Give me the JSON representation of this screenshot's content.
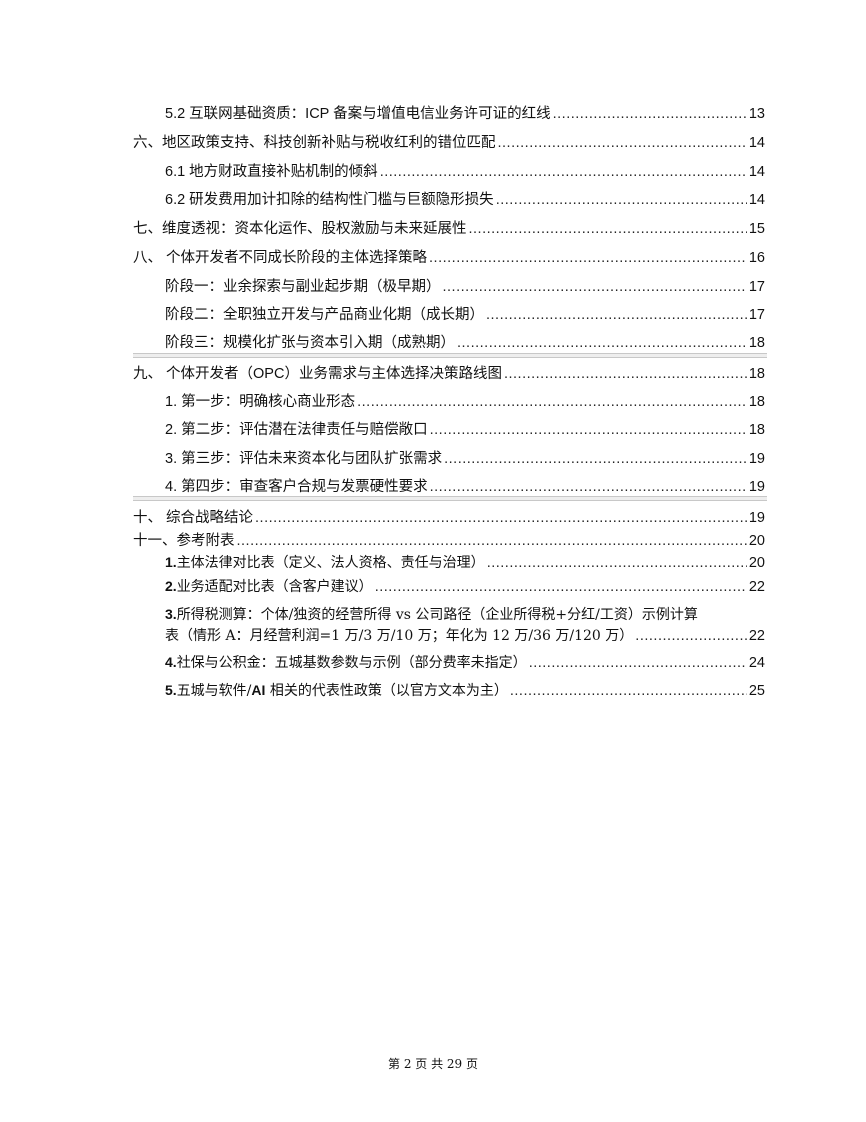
{
  "toc": [
    {
      "text": "5.2 互联网基础资质：ICP 备案与增值电信业务许可证的红线",
      "page": "13",
      "level": 2
    },
    {
      "text": "六、地区政策支持、科技创新补贴与税收红利的错位匹配",
      "page": "14",
      "level": 1
    },
    {
      "text": "6.1 地方财政直接补贴机制的倾斜",
      "page": "14",
      "level": 2
    },
    {
      "text": "6.2 研发费用加计扣除的结构性门槛与巨额隐形损失",
      "page": "14",
      "level": 2
    },
    {
      "text": "七、维度透视：资本化运作、股权激励与未来延展性",
      "page": "15",
      "level": 1
    },
    {
      "text": "八、 个体开发者不同成长阶段的主体选择策略",
      "page": "16",
      "level": 1
    },
    {
      "text": "阶段一：业余探索与副业起步期（极早期）",
      "page": "17",
      "level": 2
    },
    {
      "text": "阶段二：全职独立开发与产品商业化期（成长期）",
      "page": "17",
      "level": 2
    },
    {
      "text": "阶段三：规模化扩张与资本引入期（成熟期）",
      "page": "18",
      "level": 2
    },
    {
      "text": "九、 个体开发者（OPC）业务需求与主体选择决策路线图",
      "page": "18",
      "level": 1
    },
    {
      "text": "1. 第一步：明确核心商业形态",
      "page": "18",
      "level": 2
    },
    {
      "text": "2. 第二步：评估潜在法律责任与赔偿敞口",
      "page": "18",
      "level": 2
    },
    {
      "text": "3. 第三步：评估未来资本化与团队扩张需求",
      "page": "19",
      "level": 2
    },
    {
      "text": "4. 第四步：审查客户合规与发票硬性要求",
      "page": "19",
      "level": 2
    },
    {
      "text": "十、 综合战略结论",
      "page": "19",
      "level": 1
    },
    {
      "text": "十一、参考附表",
      "page": "20",
      "level": 1
    },
    {
      "prefix": "1.",
      "text": "主体法律对比表（定义、法人资格、责任与治理）",
      "page": "20",
      "level": 2
    },
    {
      "prefix": "2.",
      "text": "业务适配对比表（含客户建议）",
      "page": "22",
      "level": 2
    },
    {
      "prefix": "3.",
      "text": "所得税测算：个体/独资的经营所得 vs 公司路径（企业所得税+分红/工资）示例计算",
      "continuation": "表（情形 A：月经营利润=1 万/3 万/10 万；年化为 12 万/36 万/120 万）",
      "page": "22",
      "level": 2
    },
    {
      "prefix": "4.",
      "text": "社保与公积金：五城基数参数与示例（部分费率未指定）",
      "page": "24",
      "level": 2
    },
    {
      "prefix": "5.",
      "text": "五城与软件/",
      "bold_mid": "AI",
      "text_after": " 相关的代表性政策（以官方文本为主）",
      "page": "25",
      "level": 2
    }
  ],
  "footer": "第 2 页 共 29 页"
}
